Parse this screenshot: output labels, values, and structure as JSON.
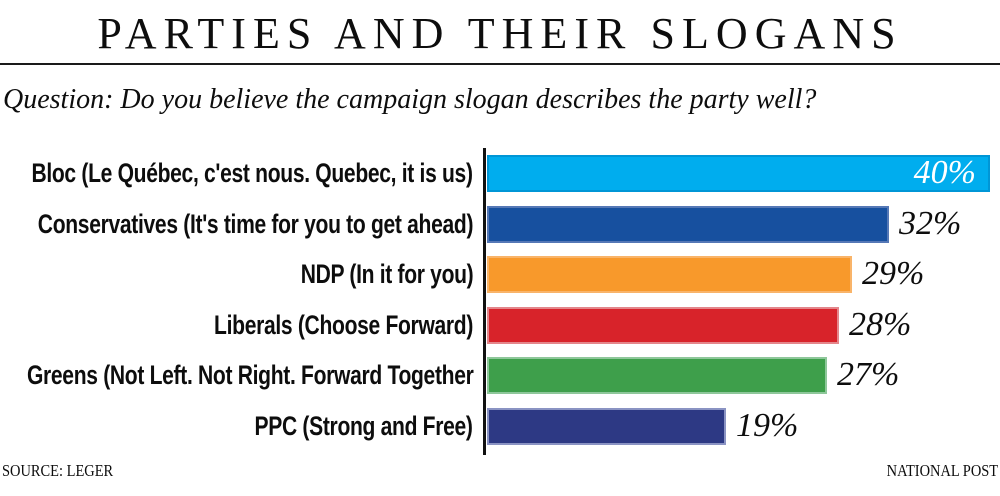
{
  "title": "PARTIES AND THEIR SLOGANS",
  "question": "Question: Do you believe the campaign slogan describes the party well?",
  "footer": {
    "source": "SOURCE: LEGER",
    "credit": "NATIONAL POST"
  },
  "chart_data": {
    "type": "bar",
    "orientation": "horizontal",
    "title": "PARTIES AND THEIR SLOGANS",
    "subtitle": "Question: Do you believe the campaign slogan describes the party well?",
    "xlim": [
      0,
      40
    ],
    "grid": false,
    "legend": false,
    "categories": [
      "Bloc (Le Québec, c'est nous. Quebec, it is us)",
      "Conservatives (It's time for you to get ahead)",
      "NDP (In it for you)",
      "Liberals (Choose Forward)",
      "Greens (Not Left. Not Right. Forward Together",
      "PPC (Strong and Free)"
    ],
    "values": [
      40,
      32,
      29,
      28,
      27,
      19
    ],
    "value_labels": [
      "40%",
      "32%",
      "29%",
      "28%",
      "27%",
      "19%"
    ],
    "value_label_inside": [
      true,
      false,
      false,
      false,
      false,
      false
    ],
    "bar_colors": [
      "#00ADEE",
      "#17509F",
      "#F8992B",
      "#D8232A",
      "#3E9F4B",
      "#2D3984"
    ],
    "bar_border_colors": [
      "#0096D6",
      "#5578B6",
      "#F9B469",
      "#E4868B",
      "#8EC79A",
      "#8A93C3"
    ]
  }
}
